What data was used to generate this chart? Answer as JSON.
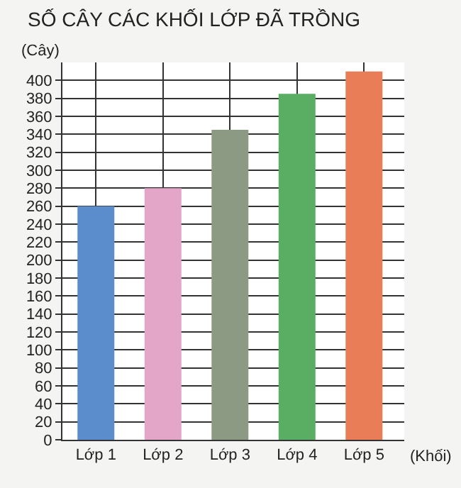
{
  "chart_data": {
    "type": "bar",
    "title": "SỐ CÂY CÁC KHỐI LỚP ĐÃ TRỒNG",
    "xlabel": "(Khối)",
    "ylabel": "(Cây)",
    "categories": [
      "Lớp 1",
      "Lớp 2",
      "Lớp 3",
      "Lớp 4",
      "Lớp 5"
    ],
    "values": [
      260,
      280,
      345,
      385,
      410
    ],
    "colors": [
      "#5b8ccc",
      "#e3a6c8",
      "#8c9a84",
      "#5aae63",
      "#e87d57"
    ],
    "ylim": [
      0,
      420
    ],
    "yticks": [
      0,
      20,
      40,
      60,
      80,
      100,
      120,
      140,
      160,
      180,
      200,
      220,
      240,
      260,
      280,
      300,
      320,
      340,
      360,
      380,
      400
    ],
    "grid": true
  }
}
